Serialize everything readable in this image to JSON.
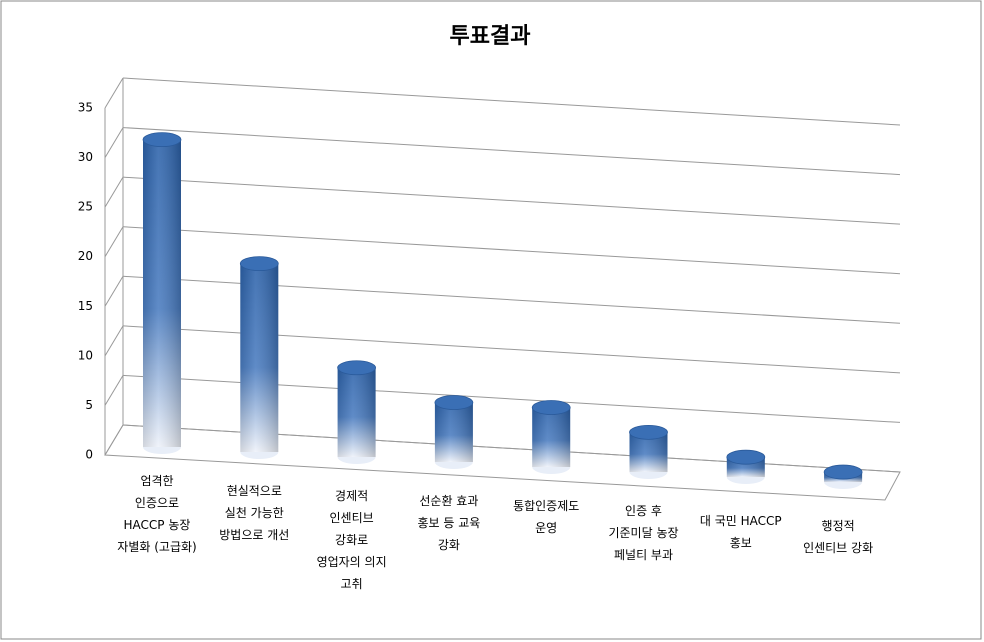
{
  "chart_data": {
    "type": "bar3d",
    "title": "투표결과",
    "categories": [
      "엄격한\n인증으로\nHACCP 농장\n자별화 (고급화)",
      "현실적으로\n실천 가능한\n방법으로 개선",
      "경제적\n인센티브\n강화로\n영업자의 의지\n고취",
      "선순환 효과\n홍보 등 교육\n강화",
      "통합인증제도\n운영",
      "인증 후\n기준미달 농장\n페널티 부과",
      "대 국민 HACCP\n홍보",
      "행정적\n인센티브 강화"
    ],
    "values": [
      31,
      19,
      9,
      6,
      6,
      4,
      2,
      1
    ],
    "color": "#3a6fb5",
    "ylim": [
      0,
      35
    ],
    "yticks": [
      0,
      5,
      10,
      15,
      20,
      25,
      30,
      35
    ],
    "grid": true
  }
}
